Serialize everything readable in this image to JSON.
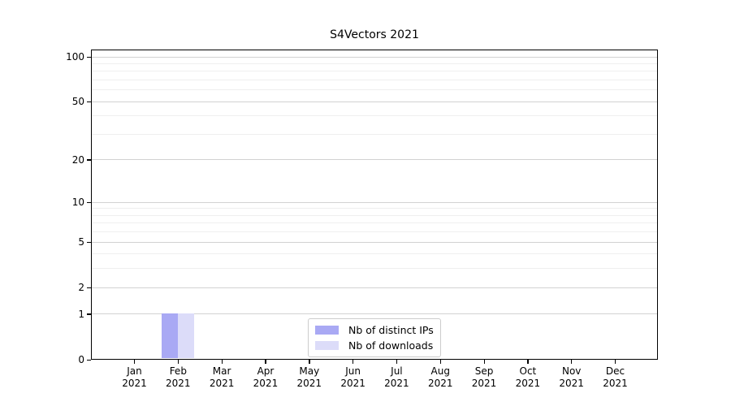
{
  "chart_data": {
    "type": "bar",
    "title": "S4Vectors 2021",
    "y_scale": "log1p",
    "ylim": [
      0,
      112
    ],
    "grid": true,
    "y_ticks": [
      0,
      1,
      2,
      5,
      10,
      20,
      50,
      100
    ],
    "y_minor_gridlines": [
      3,
      4,
      6,
      7,
      8,
      9,
      30,
      40,
      60,
      70,
      80,
      90
    ],
    "categories": [
      {
        "month": "Jan",
        "year": "2021"
      },
      {
        "month": "Feb",
        "year": "2021"
      },
      {
        "month": "Mar",
        "year": "2021"
      },
      {
        "month": "Apr",
        "year": "2021"
      },
      {
        "month": "May",
        "year": "2021"
      },
      {
        "month": "Jun",
        "year": "2021"
      },
      {
        "month": "Jul",
        "year": "2021"
      },
      {
        "month": "Aug",
        "year": "2021"
      },
      {
        "month": "Sep",
        "year": "2021"
      },
      {
        "month": "Oct",
        "year": "2021"
      },
      {
        "month": "Nov",
        "year": "2021"
      },
      {
        "month": "Dec",
        "year": "2021"
      }
    ],
    "series": [
      {
        "name": "Nb of distinct IPs",
        "color": "#a9a9f4",
        "values": [
          0,
          1,
          0,
          0,
          0,
          0,
          0,
          0,
          0,
          0,
          0,
          0
        ]
      },
      {
        "name": "Nb of downloads",
        "color": "#dcdcf9",
        "values": [
          0,
          1,
          0,
          0,
          0,
          0,
          0,
          0,
          0,
          0,
          0,
          0
        ]
      }
    ],
    "legend_position": "bottom-center"
  }
}
